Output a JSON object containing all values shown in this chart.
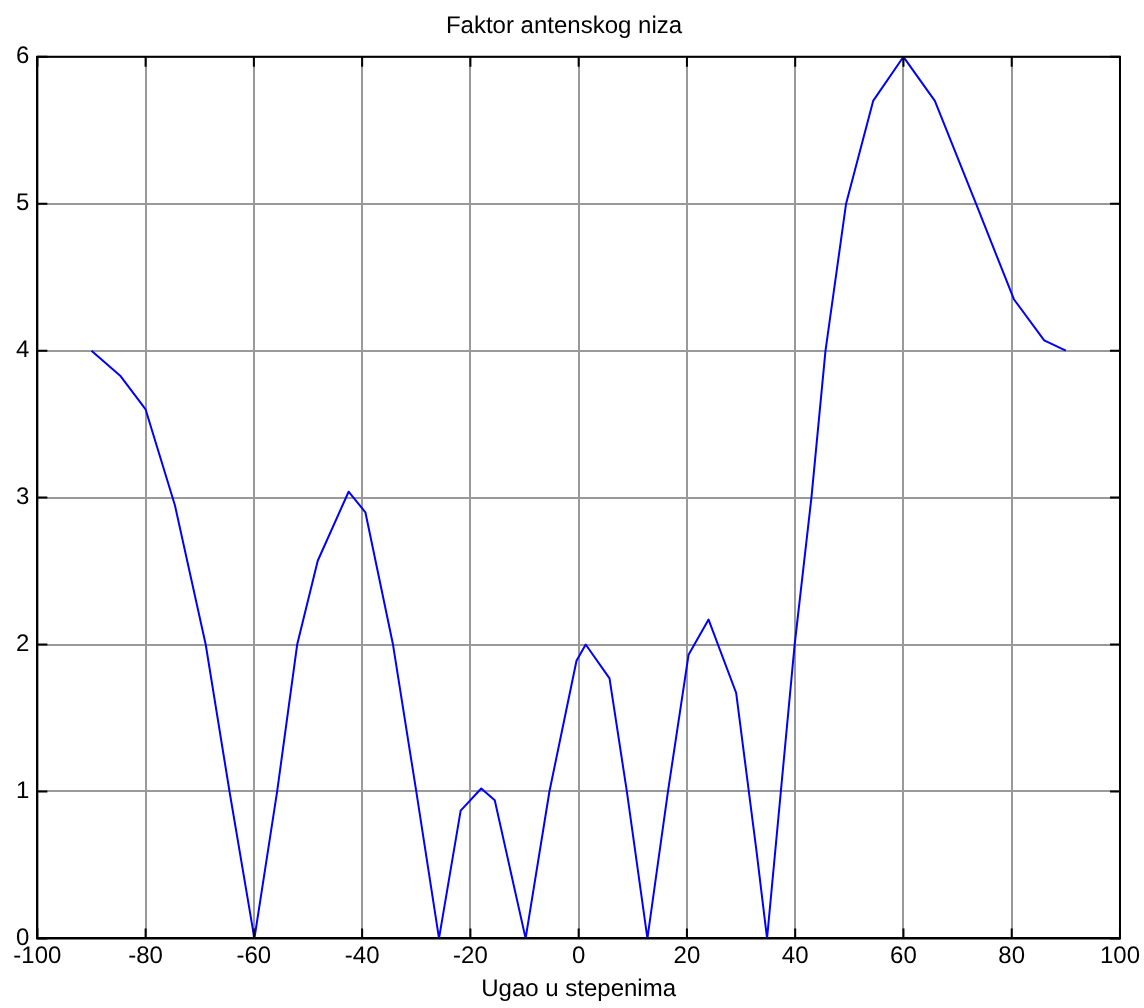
{
  "chart_data": {
    "type": "line",
    "title": "Faktor antenskog niza",
    "xlabel": "Ugao u stepenima",
    "x": [
      -90,
      -84.7,
      -80,
      -74.6,
      -68.9,
      -64.5,
      -59.9,
      -55.7,
      -52,
      -48.2,
      -42.5,
      -39.4,
      -34.3,
      -30,
      -25.8,
      -21.8,
      -18,
      -15.5,
      -9.8,
      -5.4,
      -0.4,
      1.3,
      5.7,
      8.9,
      12.7,
      16.5,
      20.3,
      24,
      29.1,
      32.9,
      34.8,
      39.9,
      43,
      45.6,
      49.4,
      54.4,
      60,
      65.8,
      73.4,
      80.4,
      86,
      90
    ],
    "series": [
      {
        "color": "#0000ff",
        "values": [
          4,
          3.83,
          3.6,
          2.95,
          2,
          1,
          0,
          1,
          2,
          2.57,
          3.04,
          2.9,
          2,
          1,
          0,
          0.87,
          1.02,
          0.94,
          0,
          1,
          1.89,
          2,
          1.77,
          1,
          0,
          1,
          1.93,
          2.17,
          1.67,
          0.58,
          0,
          2,
          3,
          4,
          5,
          5.7,
          6,
          5.7,
          5,
          4.35,
          4.07,
          4
        ]
      }
    ],
    "xlim": [
      -100,
      100
    ],
    "xticks": [
      -100,
      -80,
      -60,
      -40,
      -20,
      0,
      20,
      40,
      60,
      80,
      100
    ],
    "ylim": [
      0,
      6
    ],
    "yticks": [
      0,
      1,
      2,
      3,
      4,
      5,
      6
    ],
    "grid": true,
    "legend": false,
    "marker": "none",
    "line_style": "solid"
  }
}
